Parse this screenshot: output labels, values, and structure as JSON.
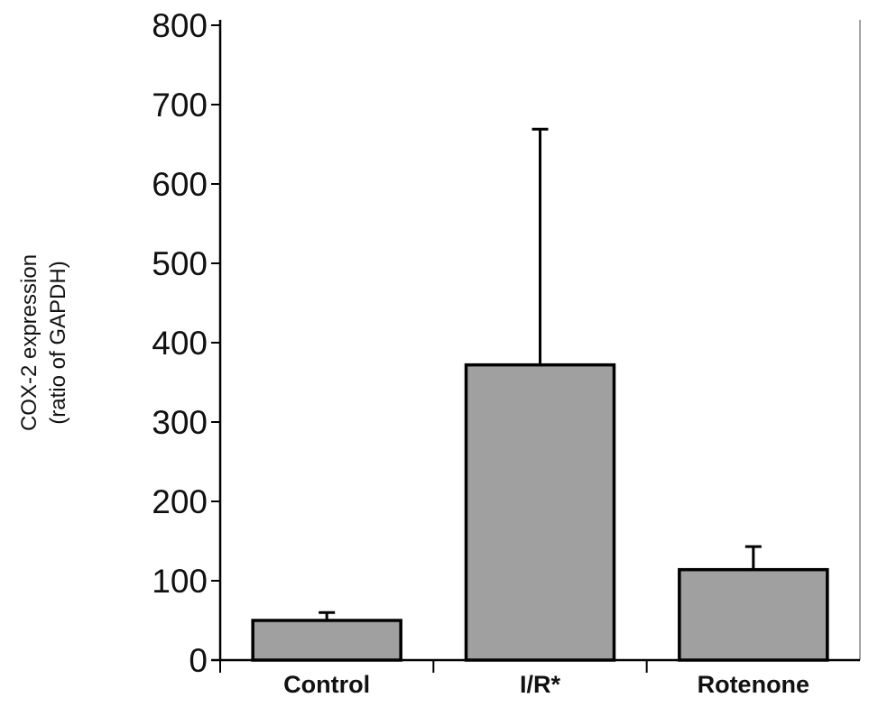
{
  "chart_data": {
    "type": "bar",
    "title": "",
    "xlabel": "",
    "ylabel": [
      "COX-2 expression",
      "(ratio of GAPDH)"
    ],
    "categories": [
      "Control",
      "I/R*",
      "Rotenone"
    ],
    "values": [
      50,
      372,
      114
    ],
    "error_upper": [
      60,
      669,
      143
    ],
    "ylim": [
      0,
      800
    ],
    "yticks": [
      0,
      100,
      200,
      300,
      400,
      500,
      600,
      700,
      800
    ],
    "grid": false,
    "bar_color": "#a0a0a0",
    "edge_color": "#000000"
  }
}
